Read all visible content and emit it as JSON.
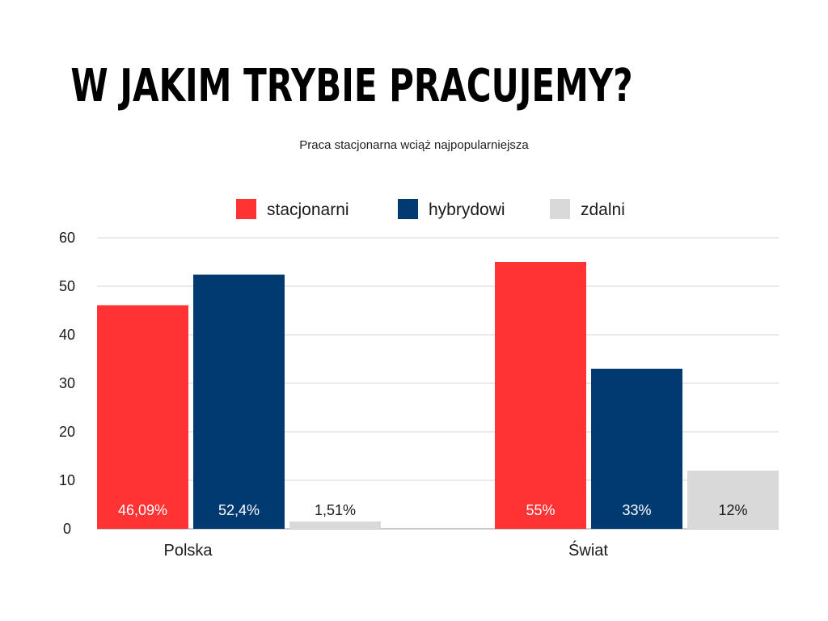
{
  "title": "W JAKIM TRYBIE PRACUJEMY?",
  "subtitle": "Praca stacjonarna wciąż najpopularniejsza",
  "chart_data": {
    "type": "bar",
    "categories": [
      "Polska",
      "Świat"
    ],
    "series": [
      {
        "name": "stacjonarni",
        "color": "#ff3333",
        "label_color": "#ffffff",
        "values": [
          46.09,
          55
        ],
        "labels": [
          "46,09%",
          "55%"
        ]
      },
      {
        "name": "hybrydowi",
        "color": "#003a70",
        "label_color": "#ffffff",
        "values": [
          52.4,
          33
        ],
        "labels": [
          "52,4%",
          "33%"
        ]
      },
      {
        "name": "zdalni",
        "color": "#d9d9d9",
        "label_color": "#1a1a1a",
        "values": [
          1.51,
          12
        ],
        "labels": [
          "1,51%",
          "12%"
        ]
      }
    ],
    "ylim": [
      0,
      60
    ],
    "yticks": [
      0,
      10,
      20,
      30,
      40,
      50,
      60
    ],
    "grid": true,
    "legend": "top"
  }
}
